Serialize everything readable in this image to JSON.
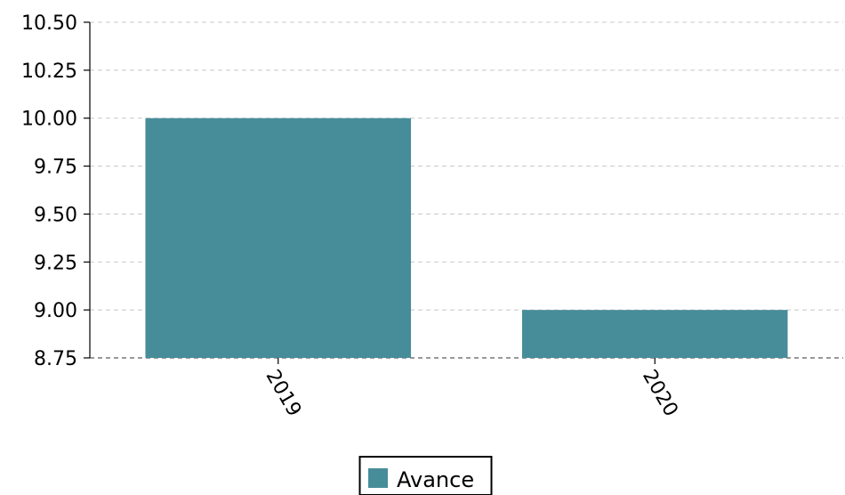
{
  "chart_data": {
    "type": "bar",
    "categories": [
      "2019",
      "2020"
    ],
    "series": [
      {
        "name": "Avance",
        "values": [
          10.0,
          9.0
        ],
        "color": "#478d99"
      }
    ],
    "title": "",
    "xlabel": "",
    "ylabel": "",
    "ylim": [
      8.75,
      10.5
    ],
    "yticks": [
      "8.75",
      "9.00",
      "9.25",
      "9.50",
      "9.75",
      "10.00",
      "10.25",
      "10.50"
    ],
    "grid": "horizontal-dashed",
    "legend_position": "bottom-center",
    "x_tick_rotation_deg": 60
  }
}
